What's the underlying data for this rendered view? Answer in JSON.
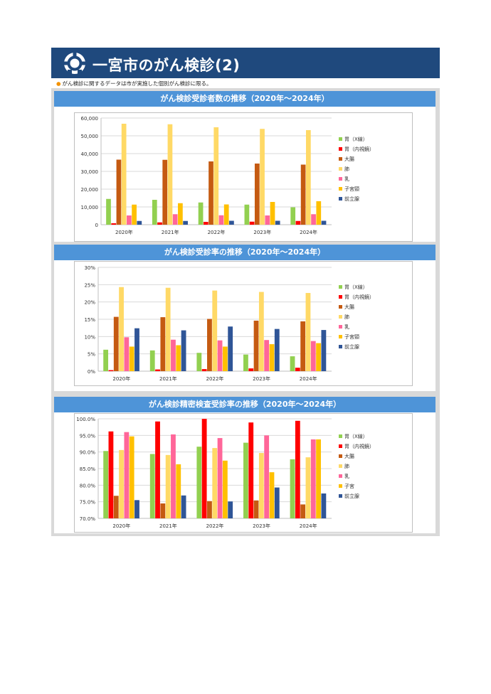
{
  "header": {
    "title": "一宮市のがん検診(2)"
  },
  "note": "がん検診に関するデータは市が実施した個別がん検診に限る。",
  "colors": {
    "header_bg": "#1f497d",
    "banner_bg": "#4e94d8",
    "frame_bg": "#d9d9d9",
    "series": [
      "#92d050",
      "#ff0000",
      "#c55a11",
      "#ffd966",
      "#ff6699",
      "#ffc000",
      "#2f5597"
    ]
  },
  "sections": [
    {
      "title": "がん検診受診者数の推移（2020年～2024年）"
    },
    {
      "title": "がん検診受診率の推移（2020年～2024年）"
    },
    {
      "title": "がん検診精密検査受診率の推移（2020年～2024年）"
    }
  ],
  "chart_data": [
    {
      "type": "bar",
      "title": "がん検診受診者数の推移（2020年～2024年）",
      "categories": [
        "2020年",
        "2021年",
        "2022年",
        "2023年",
        "2024年"
      ],
      "ylim": [
        0,
        60000
      ],
      "yticks": [
        0,
        10000,
        20000,
        30000,
        40000,
        50000,
        60000
      ],
      "ytick_labels": [
        "0",
        "10,000",
        "20,000",
        "30,000",
        "40,000",
        "50,000",
        "60,000"
      ],
      "grid": true,
      "legend": "right",
      "series": [
        {
          "name": "胃（X線）",
          "values": [
            14500,
            14000,
            12500,
            11300,
            9800
          ]
        },
        {
          "name": "胃（内視鏡）",
          "values": [
            800,
            1300,
            1600,
            1700,
            2100
          ]
        },
        {
          "name": "大腸",
          "values": [
            36600,
            36500,
            35600,
            34400,
            33800
          ]
        },
        {
          "name": "肺",
          "values": [
            56800,
            56500,
            54800,
            53900,
            53200
          ]
        },
        {
          "name": "乳",
          "values": [
            5200,
            5900,
            5300,
            5200,
            5900
          ]
        },
        {
          "name": "子宮頸",
          "values": [
            11300,
            12100,
            11400,
            12800,
            13200
          ]
        },
        {
          "name": "前立腺",
          "values": [
            2100,
            2100,
            2200,
            2200,
            2200
          ]
        }
      ]
    },
    {
      "type": "bar",
      "title": "がん検診受診率の推移（2020年～2024年）",
      "categories": [
        "2020年",
        "2021年",
        "2022年",
        "2023年",
        "2024年"
      ],
      "ylim": [
        0,
        30
      ],
      "yticks": [
        0,
        5,
        10,
        15,
        20,
        25,
        30
      ],
      "ytick_labels": [
        "0%",
        "5%",
        "10%",
        "15%",
        "20%",
        "25%",
        "30%"
      ],
      "grid": true,
      "legend": "right",
      "series": [
        {
          "name": "胃（X線）",
          "values": [
            6.2,
            6.0,
            5.3,
            4.8,
            4.3
          ]
        },
        {
          "name": "胃（内視鏡）",
          "values": [
            0.3,
            0.5,
            0.6,
            0.8,
            1.0
          ]
        },
        {
          "name": "大腸",
          "values": [
            15.7,
            15.6,
            15.1,
            14.6,
            14.4
          ]
        },
        {
          "name": "肺",
          "values": [
            24.3,
            24.1,
            23.3,
            22.9,
            22.6
          ]
        },
        {
          "name": "乳",
          "values": [
            9.8,
            9.1,
            8.9,
            9.0,
            8.7
          ]
        },
        {
          "name": "子宮頸",
          "values": [
            7.1,
            7.5,
            7.1,
            7.8,
            8.1
          ]
        },
        {
          "name": "前立腺",
          "values": [
            12.4,
            11.8,
            12.9,
            12.2,
            11.9
          ]
        }
      ]
    },
    {
      "type": "bar",
      "title": "がん検診精密検査受診率の推移（2020年～2024年）",
      "categories": [
        "2020年",
        "2021年",
        "2022年",
        "2023年",
        "2024年"
      ],
      "ylim": [
        70,
        100
      ],
      "yticks": [
        70,
        75,
        80,
        85,
        90,
        95,
        100
      ],
      "ytick_labels": [
        "70.0%",
        "75.0%",
        "80.0%",
        "85.0%",
        "90.0%",
        "95.0%",
        "100.0%"
      ],
      "grid": true,
      "legend": "right",
      "series": [
        {
          "name": "胃（X線）",
          "values": [
            90.3,
            89.4,
            91.6,
            92.8,
            87.8
          ]
        },
        {
          "name": "胃（内視鏡）",
          "values": [
            96.2,
            99.2,
            100.0,
            98.9,
            99.4
          ]
        },
        {
          "name": "大腸",
          "values": [
            76.8,
            74.5,
            75.2,
            75.4,
            74.2
          ]
        },
        {
          "name": "肺",
          "values": [
            90.6,
            89.1,
            91.2,
            89.7,
            88.4
          ]
        },
        {
          "name": "乳",
          "values": [
            96.0,
            95.3,
            94.2,
            95.0,
            93.8
          ]
        },
        {
          "name": "子宮",
          "values": [
            94.7,
            86.3,
            87.4,
            83.9,
            93.8
          ]
        },
        {
          "name": "前立腺",
          "values": [
            75.5,
            76.9,
            75.1,
            79.3,
            77.5
          ]
        }
      ]
    }
  ]
}
